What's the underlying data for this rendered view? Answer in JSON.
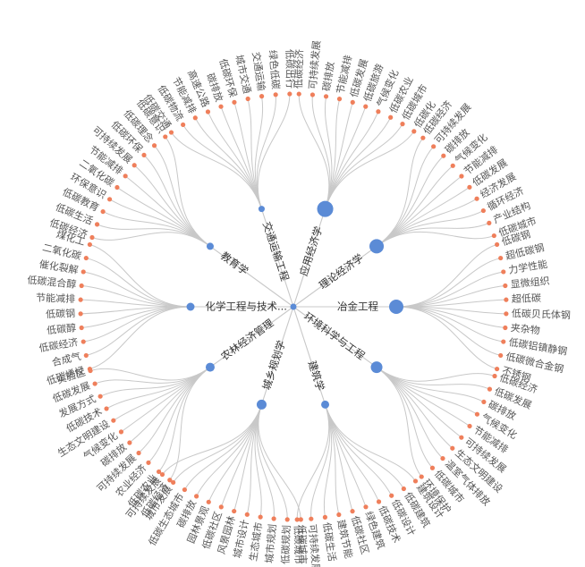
{
  "colors": {
    "link": "#c8c8c8",
    "leaf_node": "#ef7f5b",
    "branch_node": "#5b8bd6",
    "label_text": "#555555"
  },
  "tree": {
    "type": "radial-tree",
    "root": "环境科学与工程",
    "branches": [
      {
        "name": "应用经济学",
        "leaves": [
          "低碳经济",
          "可持续发展",
          "碳排放",
          "节能减排",
          "低碳发展",
          "低碳旅游",
          "气候变化",
          "低碳农业",
          "低碳城市",
          "低碳化"
        ]
      },
      {
        "name": "理论经济学",
        "leaves": [
          "低碳经济",
          "可持续发展",
          "碳排放",
          "气候变化",
          "节能减排",
          "低碳发展",
          "经济发展",
          "循环经济",
          "产业结构",
          "低碳城市"
        ]
      },
      {
        "name": "冶金工程",
        "leaves": [
          "低碳钢",
          "超低碳钢",
          "力学性能",
          "显微组织",
          "超低碳",
          "低碳贝氏体钢",
          "夹杂物",
          "低碳铝镇静钢",
          "低碳微合金钢",
          "不锈钢"
        ]
      },
      {
        "name": "环境科学与工程",
        "leaves": [
          "低碳经济",
          "低碳发展",
          "碳排放",
          "气候变化",
          "节能减排",
          "可持续发展",
          "生态文明建设",
          "温室气体排放",
          "低碳城市",
          "环境保护"
        ]
      },
      {
        "name": "建筑学",
        "leaves": [
          "建筑设计",
          "低碳建筑",
          "低碳设计",
          "低碳技术",
          "绿色建筑",
          "低碳社区",
          "建筑节能",
          "低碳生活",
          "可持续发展",
          "低碳城市"
        ]
      },
      {
        "name": "城乡规划学",
        "leaves": [
          "低碳城市",
          "低碳规划",
          "城市规划",
          "生态城市",
          "城市设计",
          "风景园林",
          "低碳社区",
          "园林景观",
          "碳排放",
          "低碳生态城市",
          "城市发展",
          "可持续发展"
        ]
      },
      {
        "name": "农林经济管理",
        "leaves": [
          "低碳经济",
          "低碳农业",
          "农业经济",
          "可持续发展",
          "碳排放",
          "气候变化",
          "生态文明建设",
          "低碳技术",
          "发展方式",
          "低碳发展",
          "实验区"
        ]
      },
      {
        "name": "化学工程与技术...",
        "leaves": [
          "低碳烯烃",
          "合成气",
          "低碳经济",
          "低碳醇",
          "低碳钢",
          "节能减排",
          "低碳混合醇",
          "催化裂解",
          "二氧化碳",
          "煤化工"
        ]
      },
      {
        "name": "教育学",
        "leaves": [
          "低碳经济",
          "低碳生活",
          "低碳教育",
          "环保意识",
          "二氧化碳",
          "节能减排",
          "可持续发展",
          "低碳环保",
          "低碳理念",
          "低碳意识"
        ]
      },
      {
        "name": "交通运输工程",
        "leaves": [
          "低碳交通",
          "低碳物流",
          "节能减排",
          "高速公路",
          "碳排放",
          "低碳环保",
          "城市交通",
          "交通运输",
          "绿色低碳",
          "低碳出行"
        ]
      }
    ]
  }
}
